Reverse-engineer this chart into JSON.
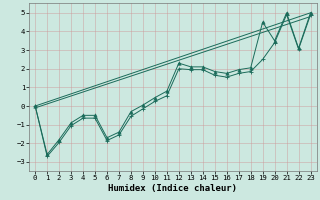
{
  "xlabel": "Humidex (Indice chaleur)",
  "xlim": [
    -0.5,
    23.5
  ],
  "ylim": [
    -3.5,
    5.5
  ],
  "bg_color": "#cce8e0",
  "grid_color": "#cc9999",
  "line_color": "#1a6b5a",
  "series1_x": [
    0,
    1,
    2,
    3,
    4,
    5,
    6,
    7,
    8,
    9,
    10,
    11,
    12,
    13,
    14,
    15,
    16,
    17,
    18,
    19,
    20,
    21,
    22,
    23
  ],
  "series1_y": [
    0.0,
    -2.6,
    -1.8,
    -0.9,
    -0.5,
    -0.5,
    -1.7,
    -1.4,
    -0.3,
    0.05,
    0.45,
    0.8,
    2.3,
    2.1,
    2.1,
    1.85,
    1.75,
    1.95,
    2.05,
    4.5,
    3.5,
    5.0,
    3.1,
    5.0
  ],
  "series2_x": [
    0,
    1,
    2,
    3,
    4,
    5,
    6,
    7,
    8,
    9,
    10,
    11,
    12,
    13,
    14,
    15,
    16,
    17,
    18,
    19,
    20,
    21,
    22,
    23
  ],
  "series2_y": [
    0.0,
    -2.7,
    -1.95,
    -1.05,
    -0.65,
    -0.65,
    -1.85,
    -1.55,
    -0.55,
    -0.15,
    0.25,
    0.55,
    2.0,
    1.95,
    1.95,
    1.65,
    1.55,
    1.75,
    1.85,
    2.5,
    3.4,
    4.9,
    3.05,
    4.9
  ],
  "trend1_x": [
    0,
    23
  ],
  "trend1_y": [
    0.0,
    5.0
  ],
  "trend2_x": [
    0,
    23
  ],
  "trend2_y": [
    -0.1,
    4.8
  ],
  "yticks": [
    -3,
    -2,
    -1,
    0,
    1,
    2,
    3,
    4,
    5
  ],
  "xticks": [
    0,
    1,
    2,
    3,
    4,
    5,
    6,
    7,
    8,
    9,
    10,
    11,
    12,
    13,
    14,
    15,
    16,
    17,
    18,
    19,
    20,
    21,
    22,
    23
  ],
  "tick_fontsize": 5.2,
  "label_fontsize": 6.5,
  "linewidth": 0.7,
  "markersize1": 2.5,
  "markersize2": 3.0
}
